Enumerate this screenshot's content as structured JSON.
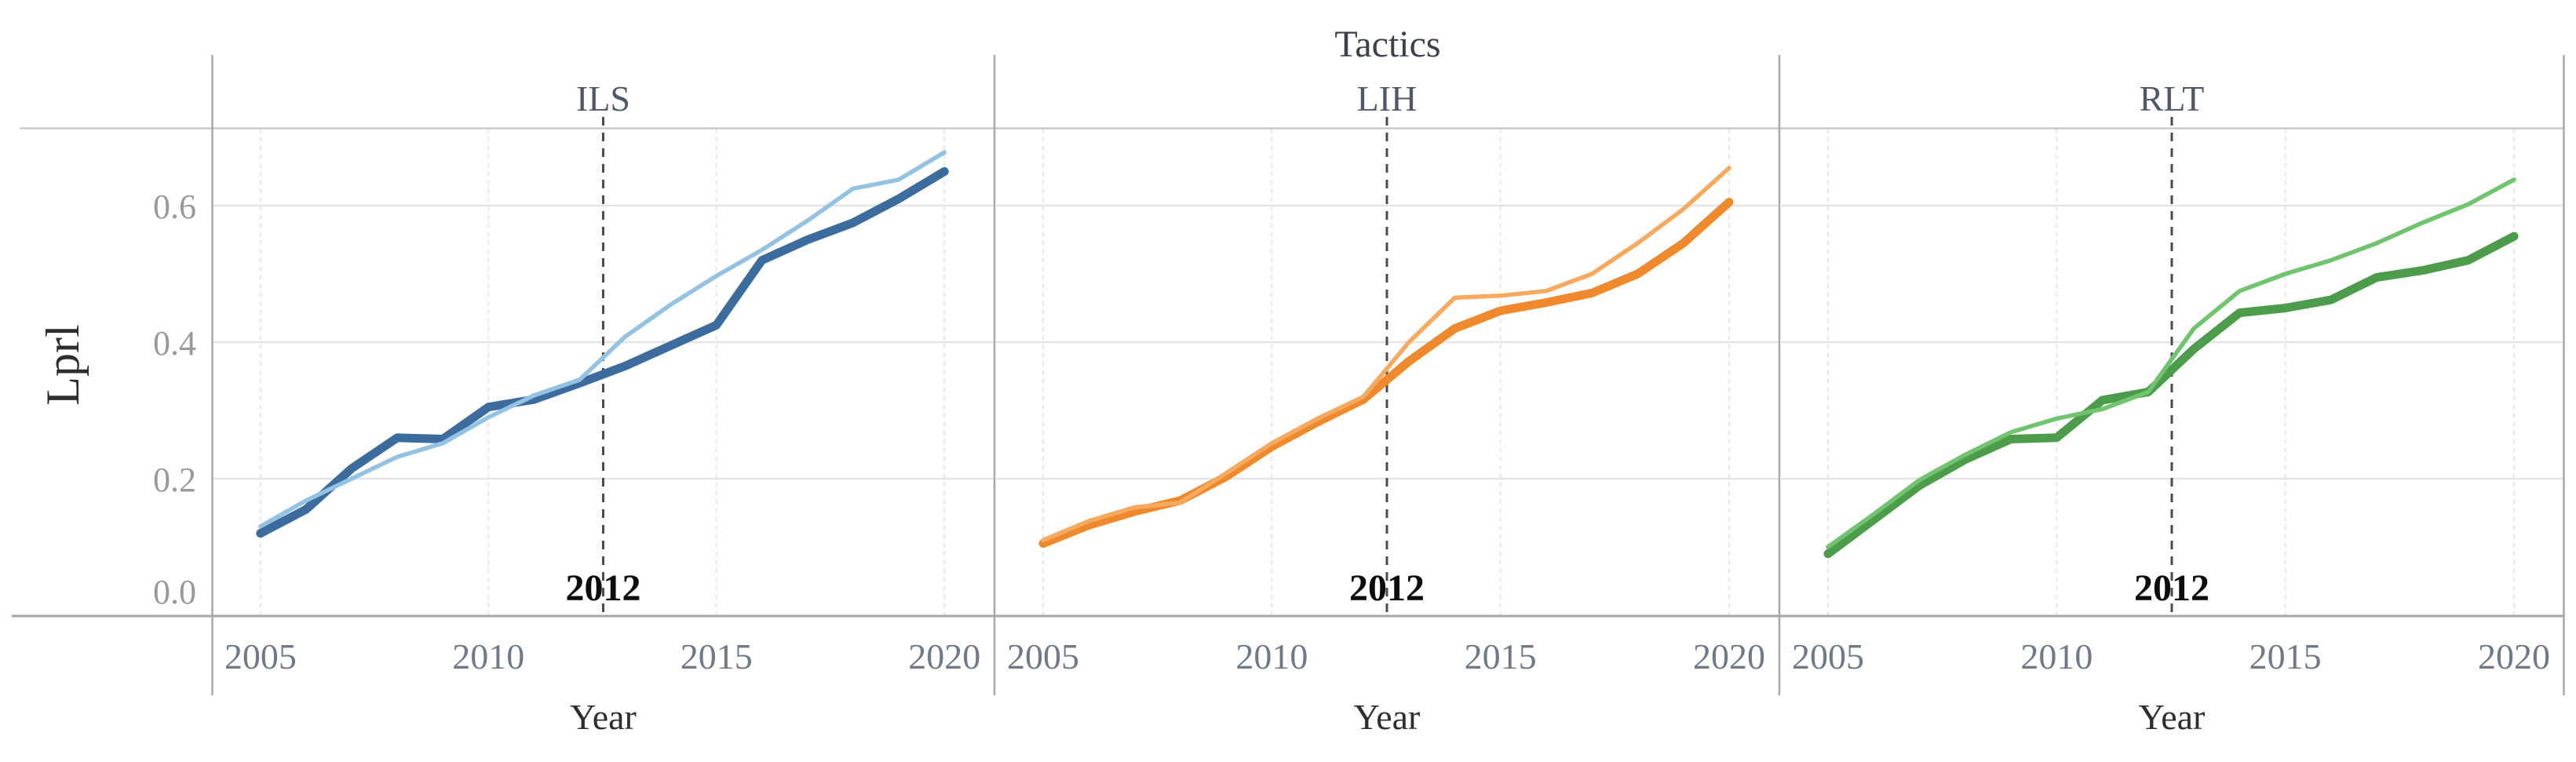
{
  "figure": {
    "title": "Tactics",
    "y_axis_title": "Lprl",
    "x_axis_title": "Year",
    "y_tick_labels": [
      "0.6",
      "0.4",
      "0.2",
      "0.0"
    ],
    "x_tick_labels": [
      "2005",
      "2010",
      "2015",
      "2020"
    ],
    "vline_label": "2012",
    "facet_labels": [
      "ILS",
      "LIH",
      "RLT"
    ]
  },
  "colors": {
    "ils_thick": "#3b6c9d",
    "ils_thin": "#94c2e3",
    "lih_thick": "#ee8a2d",
    "lih_thin": "#f7a95e",
    "rlt_thick": "#4d9c4b",
    "rlt_thin": "#6fc46d",
    "grid_h": "#e4e4e4",
    "grid_v": "#e7e7e7",
    "border_top": "#c9c9c9",
    "border_bottom": "#a6a6a6",
    "border_vertical": "#a8a8a8",
    "vline_2012": "#4b4b4b",
    "title_text": "#3c414d",
    "facet_text": "#4e5866",
    "ytick_text": "#999999",
    "xtick_text": "#6f7987",
    "axis_title_text": "#2e2e2e",
    "vline_text": "#0c0c0c"
  },
  "chart_data": {
    "type": "line",
    "title": "Tactics",
    "xlabel": "Year",
    "ylabel": "Lprl",
    "x": [
      2005,
      2006,
      2007,
      2008,
      2009,
      2010,
      2011,
      2012,
      2013,
      2014,
      2015,
      2016,
      2017,
      2018,
      2019,
      2020
    ],
    "xticks": [
      2005,
      2010,
      2015,
      2020
    ],
    "yticks": [
      0.0,
      0.2,
      0.4,
      0.6
    ],
    "ylim": [
      0.0,
      0.713
    ],
    "grid": true,
    "legend_position": "none",
    "vline": {
      "x": 2012.5,
      "label": "2012",
      "style": "dashed"
    },
    "facets": [
      {
        "label": "ILS",
        "series": [
          {
            "name": "thick-dark",
            "color_key": "ils_thick",
            "values": [
              0.12,
              0.155,
              0.215,
              0.26,
              0.258,
              0.305,
              0.316,
              0.34,
              0.365,
              0.395,
              0.425,
              0.52,
              0.55,
              0.575,
              0.61,
              0.65
            ]
          },
          {
            "name": "thin-light",
            "color_key": "ils_thin",
            "values": [
              0.13,
              0.168,
              0.2,
              0.232,
              0.252,
              0.29,
              0.322,
              0.345,
              0.408,
              0.455,
              0.497,
              0.535,
              0.578,
              0.625,
              0.638,
              0.678
            ]
          }
        ]
      },
      {
        "label": "LIH",
        "series": [
          {
            "name": "thick-dark",
            "color_key": "lih_thick",
            "values": [
              0.105,
              0.132,
              0.152,
              0.168,
              0.203,
              0.247,
              0.283,
              0.316,
              0.372,
              0.42,
              0.446,
              0.458,
              0.472,
              0.5,
              0.545,
              0.605
            ]
          },
          {
            "name": "thin-light",
            "color_key": "lih_thin",
            "values": [
              0.11,
              0.138,
              0.158,
              0.165,
              0.208,
              0.252,
              0.288,
              0.32,
              0.4,
              0.465,
              0.468,
              0.475,
              0.5,
              0.545,
              0.595,
              0.655
            ]
          }
        ]
      },
      {
        "label": "RLT",
        "series": [
          {
            "name": "thick-dark",
            "color_key": "rlt_thick",
            "values": [
              0.09,
              0.14,
              0.19,
              0.228,
              0.258,
              0.26,
              0.315,
              0.327,
              0.39,
              0.443,
              0.45,
              0.462,
              0.495,
              0.505,
              0.52,
              0.555
            ]
          },
          {
            "name": "thin-light",
            "color_key": "rlt_thin",
            "values": [
              0.1,
              0.148,
              0.198,
              0.235,
              0.268,
              0.288,
              0.302,
              0.327,
              0.42,
              0.475,
              0.5,
              0.52,
              0.545,
              0.575,
              0.602,
              0.638
            ]
          }
        ]
      }
    ]
  }
}
